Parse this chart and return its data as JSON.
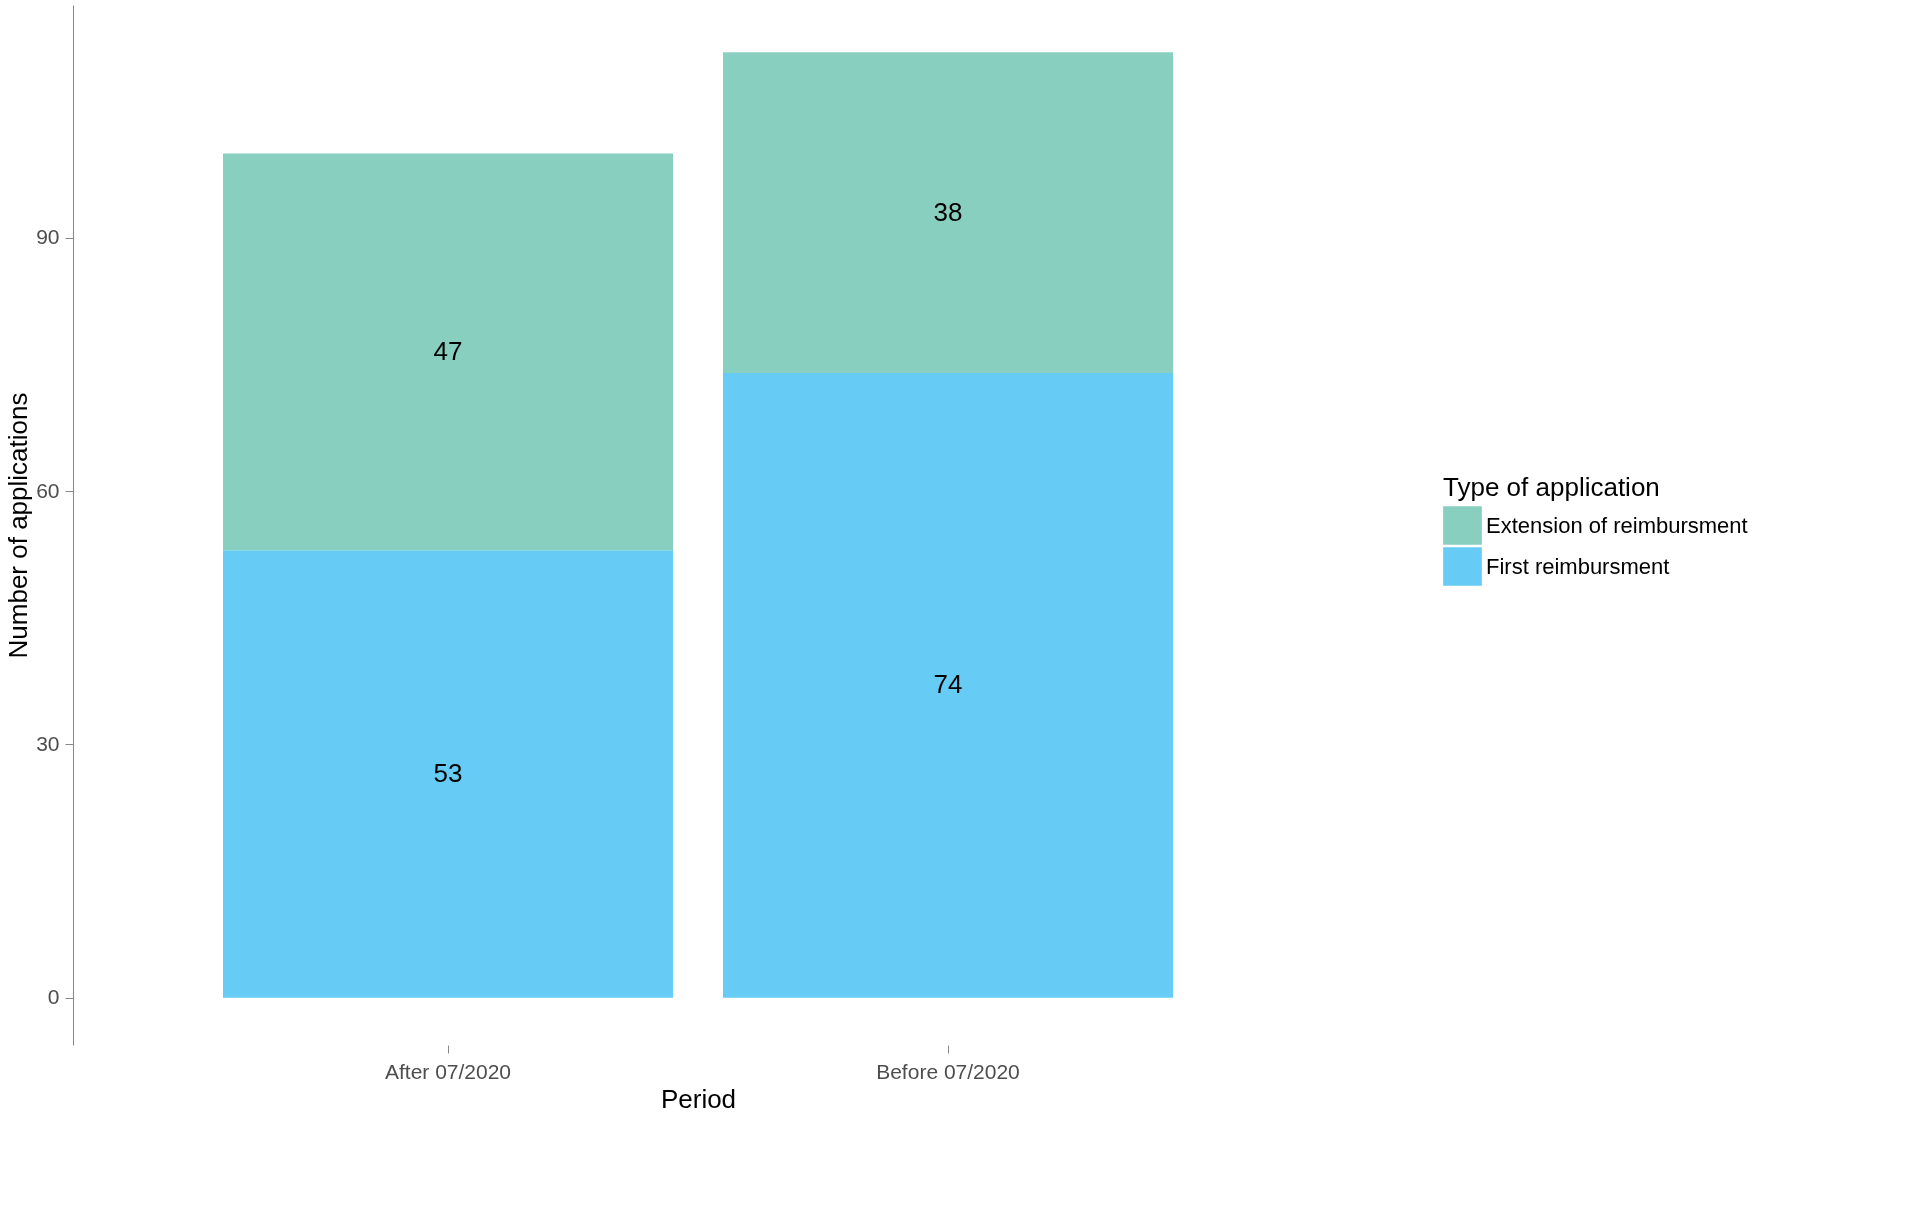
{
  "chart_data": {
    "type": "bar",
    "stacked": true,
    "categories": [
      "After 07/2020",
      "Before 07/2020"
    ],
    "series": [
      {
        "name": "First reimbursment",
        "color": "#66ccf5",
        "values": [
          53,
          74
        ]
      },
      {
        "name": "Extension of reimbursment",
        "color": "#89cfc0",
        "values": [
          47,
          38
        ]
      }
    ],
    "xlabel": "Period",
    "ylabel": "Number of applications",
    "legend_title": "Type of application",
    "ylim": [
      -5.6,
      117.6
    ],
    "yticks": [
      0,
      30,
      60,
      90
    ],
    "data_labels": true,
    "grid": false,
    "legend": "right"
  }
}
